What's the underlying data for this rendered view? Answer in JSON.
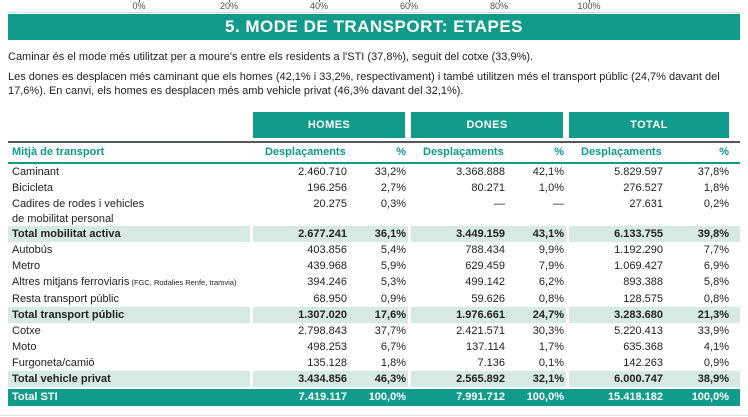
{
  "colors": {
    "teal": "#109b8b",
    "teal_light": "#d7e9e4",
    "rule_gray": "#55585a",
    "text": "#232323"
  },
  "axis_remnant": {
    "tick_labels": [
      "0%",
      "20%",
      "40%",
      "60%",
      "80%",
      "100%"
    ]
  },
  "title": "5. MODE DE TRANSPORT: ETAPES",
  "paragraphs": [
    "Caminar és el mode més utilitzat per a moure's entre els residents a l'STI (37,8%), seguit del cotxe (33,9%).",
    "Les dones es desplacen més caminant que els homes (42,1% i 33,2%, respectivament) i també utilitzen més el transport públic (24,7% davant del 17,6%). En canvi, els homes es desplacen més amb vehicle privat (46,3% davant del 32,1%)."
  ],
  "table": {
    "group_headers": [
      "HOMES",
      "DONES",
      "TOTAL"
    ],
    "col_label": "Mitjà de transport",
    "col_despl": "Desplaçaments",
    "col_pct": "%",
    "rows": [
      {
        "type": "normal",
        "label": "Caminant",
        "cells": [
          "2.460.710",
          "33,2%",
          "3.368.888",
          "42,1%",
          "5.829.597",
          "37,8%"
        ]
      },
      {
        "type": "normal",
        "label": "Bicicleta",
        "cells": [
          "196.256",
          "2,7%",
          "80.271",
          "1,0%",
          "276.527",
          "1,8%"
        ]
      },
      {
        "type": "normal",
        "label": "Cadires de rodes i vehicles",
        "label2": "de mobilitat personal",
        "cells": [
          "20.275",
          "0,3%",
          "—",
          "—",
          "27.631",
          "0,2%"
        ]
      },
      {
        "type": "subtotal",
        "label": "Total mobilitat activa",
        "cells": [
          "2.677.241",
          "36,1%",
          "3.449.159",
          "43,1%",
          "6.133.755",
          "39,8%"
        ]
      },
      {
        "type": "normal",
        "label": "Autobús",
        "cells": [
          "403.856",
          "5,4%",
          "788.434",
          "9,9%",
          "1.192.290",
          "7,7%"
        ]
      },
      {
        "type": "normal",
        "label": "Metro",
        "cells": [
          "439.968",
          "5,9%",
          "629.459",
          "7,9%",
          "1.069.427",
          "6,9%"
        ]
      },
      {
        "type": "normal",
        "label": "Altres mitjans ferroviaris",
        "label_small": "(FGC, Rodalies Renfe, tramvia)",
        "cells": [
          "394.246",
          "5,3%",
          "499.142",
          "6,2%",
          "893.388",
          "5,8%"
        ]
      },
      {
        "type": "normal",
        "label": "Resta transport públic",
        "cells": [
          "68.950",
          "0,9%",
          "59.626",
          "0,8%",
          "128.575",
          "0,8%"
        ]
      },
      {
        "type": "subtotal",
        "label": "Total transport públic",
        "cells": [
          "1.307.020",
          "17,6%",
          "1.976.661",
          "24,7%",
          "3.283.680",
          "21,3%"
        ]
      },
      {
        "type": "normal",
        "label": "Cotxe",
        "cells": [
          "2.798.843",
          "37,7%",
          "2.421.571",
          "30,3%",
          "5.220.413",
          "33,9%"
        ]
      },
      {
        "type": "normal",
        "label": "Moto",
        "cells": [
          "498.253",
          "6,7%",
          "137.114",
          "1,7%",
          "635.368",
          "4,1%"
        ]
      },
      {
        "type": "normal",
        "label": "Furgoneta/camió",
        "cells": [
          "135.128",
          "1,8%",
          "7.136",
          "0,1%",
          "142.263",
          "0,9%"
        ]
      },
      {
        "type": "subtotal",
        "label": "Total vehicle privat",
        "cells": [
          "3.434.856",
          "46,3%",
          "2.565.892",
          "32,1%",
          "6.000.747",
          "38,9%"
        ]
      },
      {
        "type": "grand",
        "label": "Total STI",
        "cells": [
          "7.419.117",
          "100,0%",
          "7.991.712",
          "100,0%",
          "15.418.182",
          "100,0%"
        ]
      }
    ]
  }
}
